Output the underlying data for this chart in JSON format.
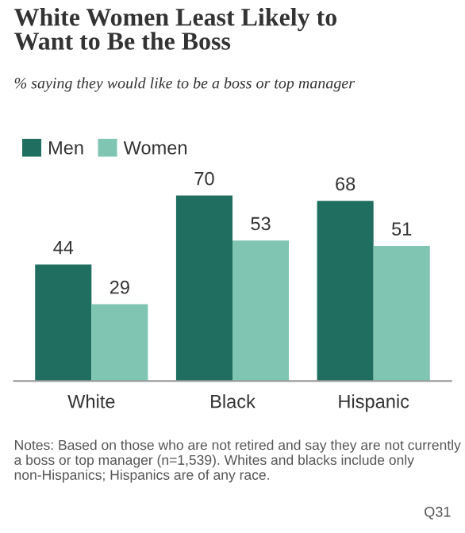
{
  "chart_data": {
    "type": "bar",
    "title": "White Women Least Likely to\nWant to Be the Boss",
    "subtitle": "% saying they would like to be a boss or top manager",
    "categories": [
      "White",
      "Black",
      "Hispanic"
    ],
    "series": [
      {
        "name": "Men",
        "color": "#1f6e5f",
        "values": [
          44,
          70,
          68
        ]
      },
      {
        "name": "Women",
        "color": "#80c5b2",
        "values": [
          29,
          53,
          51
        ]
      }
    ],
    "data_labels": true,
    "legend": "top left",
    "grid": false,
    "annotations": [
      "Notes: Based on those who are not retired and say they are not currently a boss or top manager (n=1,539). Whites and blacks include only non-Hispanics; Hispanics are of any race.",
      "Q31"
    ]
  }
}
